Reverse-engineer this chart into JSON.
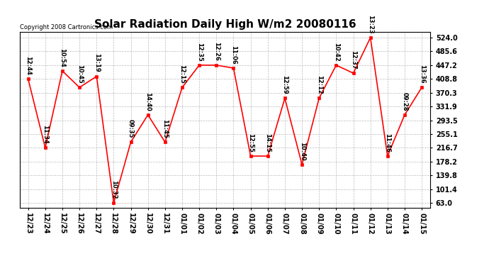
{
  "title": "Solar Radiation Daily High W/m2 20080116",
  "copyright": "Copyright 2008 Cartronics.com",
  "x_labels": [
    "12/23",
    "12/24",
    "12/25",
    "12/26",
    "12/27",
    "12/28",
    "12/29",
    "12/30",
    "12/31",
    "01/01",
    "01/02",
    "01/03",
    "01/04",
    "01/05",
    "01/06",
    "01/07",
    "01/08",
    "01/09",
    "01/10",
    "01/11",
    "01/12",
    "01/13",
    "01/14",
    "01/15"
  ],
  "y_values": [
    408.8,
    216.7,
    431.2,
    385.0,
    416.0,
    63.0,
    232.5,
    308.5,
    232.5,
    385.0,
    447.2,
    447.2,
    439.0,
    193.5,
    193.5,
    355.0,
    170.0,
    355.0,
    447.2,
    424.8,
    524.0,
    193.5,
    308.5,
    385.0
  ],
  "point_labels": [
    "12:44",
    "11:34",
    "10:54",
    "10:45",
    "13:19",
    "10:32",
    "09:35",
    "14:40",
    "11:45",
    "12:15",
    "12:35",
    "12:26",
    "11:06",
    "12:55",
    "14:15",
    "12:59",
    "10:40",
    "12:12",
    "10:42",
    "12:37",
    "13:23",
    "11:46",
    "09:28",
    "13:36"
  ],
  "y_ticks": [
    63.0,
    101.4,
    139.8,
    178.2,
    216.7,
    255.1,
    293.5,
    331.9,
    370.3,
    408.8,
    447.2,
    485.6,
    524.0
  ],
  "y_min": 50.0,
  "y_max": 540.0,
  "line_color": "red",
  "marker_color": "red",
  "marker_face": "red",
  "bg_color": "white",
  "grid_color": "#bbbbbb",
  "title_fontsize": 11,
  "label_fontsize": 6.0,
  "tick_fontsize": 7,
  "copyright_fontsize": 6
}
